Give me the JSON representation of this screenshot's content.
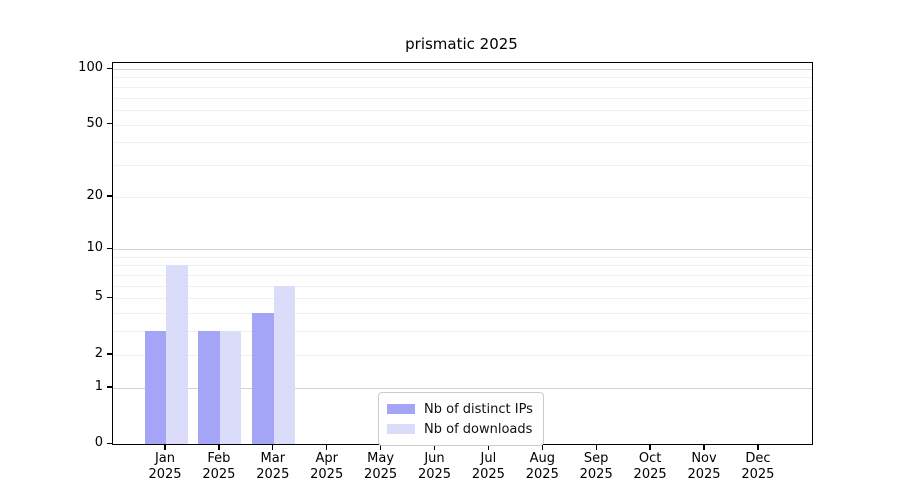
{
  "title": "prismatic 2025",
  "chart_data": {
    "type": "bar",
    "title": "prismatic 2025",
    "categories": [
      "Jan",
      "Feb",
      "Mar",
      "Apr",
      "May",
      "Jun",
      "Jul",
      "Aug",
      "Sep",
      "Oct",
      "Nov",
      "Dec"
    ],
    "x_year": "2025",
    "series": [
      {
        "name": "Nb of distinct IPs",
        "color": "#a5a5f7",
        "values": [
          3,
          3,
          4,
          0,
          0,
          0,
          0,
          0,
          0,
          0,
          0,
          0
        ]
      },
      {
        "name": "Nb of downloads",
        "color": "#dbdbfa",
        "values": [
          8,
          3,
          6,
          0,
          0,
          0,
          0,
          0,
          0,
          0,
          0,
          0
        ]
      }
    ],
    "y_scale": "log1p",
    "y_ticks": [
      0,
      1,
      2,
      5,
      10,
      20,
      50,
      100
    ],
    "y_minor_gridlines": [
      2,
      3,
      4,
      5,
      6,
      7,
      8,
      9,
      20,
      30,
      40,
      50,
      60,
      70,
      80,
      90
    ],
    "y_major_gridlines": [
      1,
      10,
      100
    ],
    "ylim": [
      0,
      100
    ],
    "grid": true,
    "legend_position": "bottom-center",
    "colors": {
      "major_grid": "#d2d2d2",
      "minor_grid": "#f0f0f0",
      "spine": "#000000",
      "background": "#ffffff"
    }
  }
}
